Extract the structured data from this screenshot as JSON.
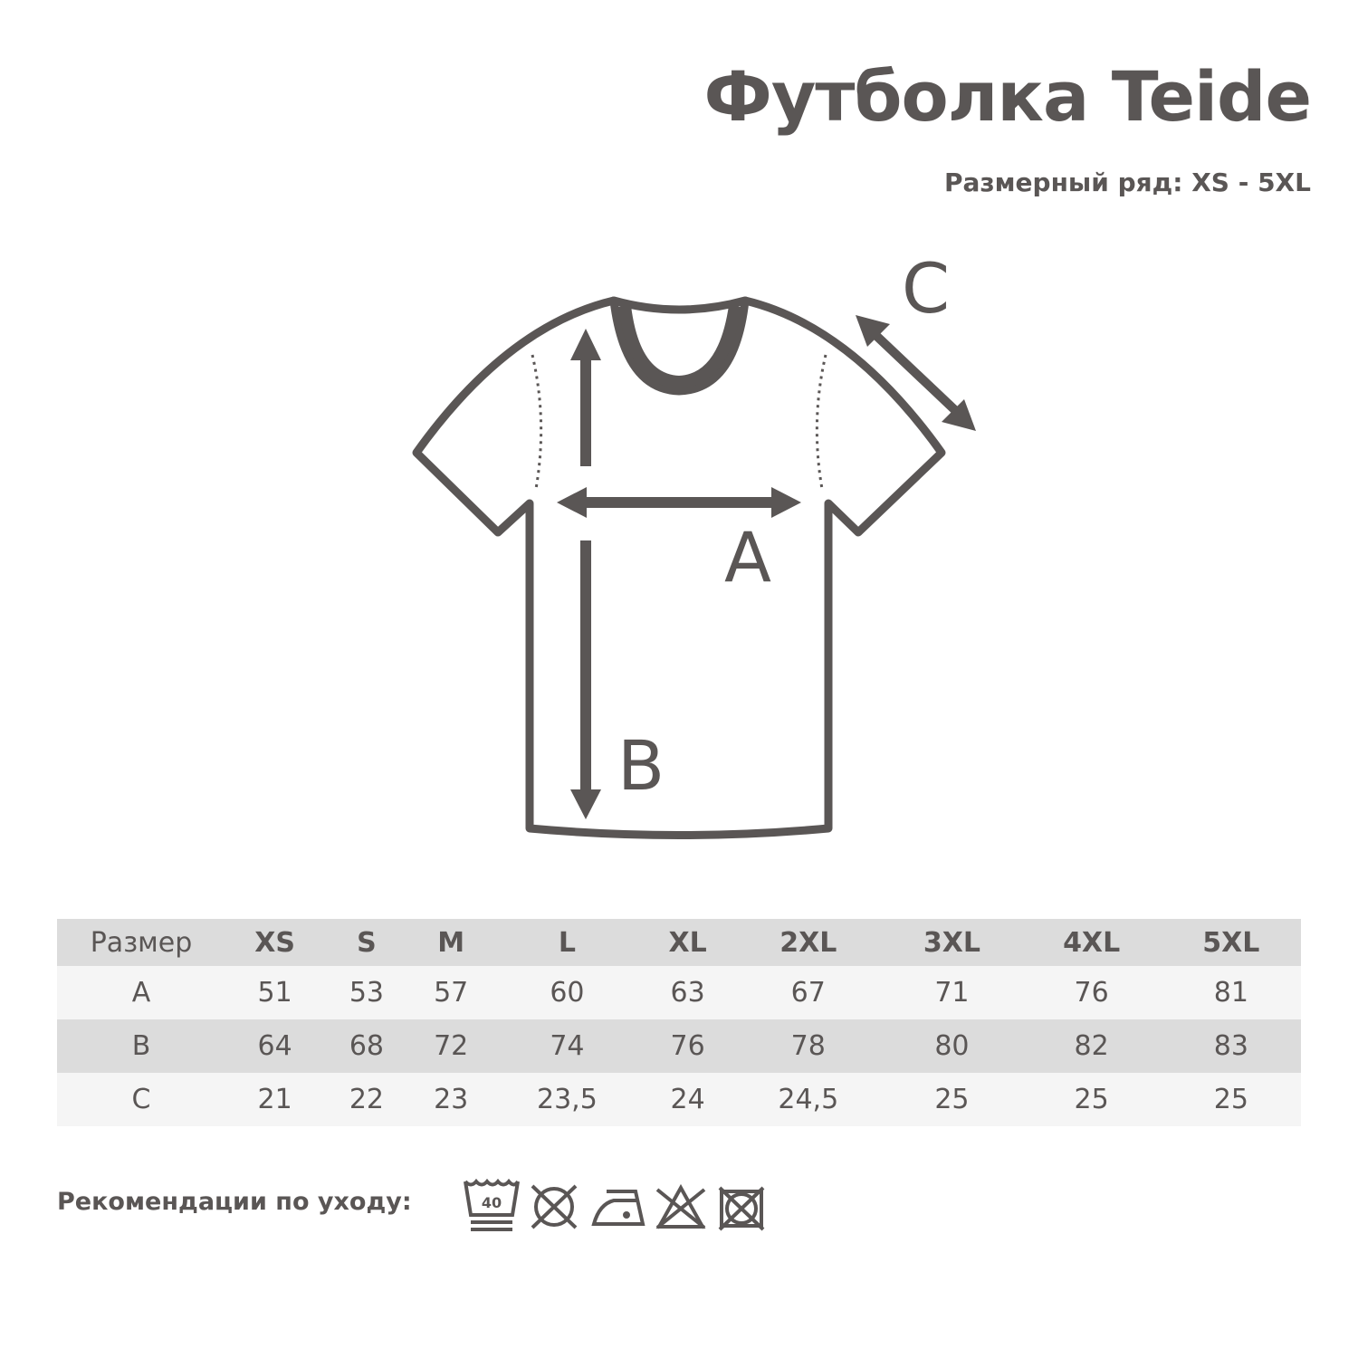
{
  "title": "Футболка Teide",
  "subtitle": "Размерный ряд: XS - 5XL",
  "diagram": {
    "labels": {
      "a": "A",
      "b": "B",
      "c": "C"
    }
  },
  "table": {
    "header": [
      "Размер",
      "XS",
      "S",
      "M",
      "L",
      "XL",
      "2XL",
      "3XL",
      "4XL",
      "5XL"
    ],
    "rows": [
      [
        "A",
        "51",
        "53",
        "57",
        "60",
        "63",
        "67",
        "71",
        "76",
        "81"
      ],
      [
        "B",
        "64",
        "68",
        "72",
        "74",
        "76",
        "78",
        "80",
        "82",
        "83"
      ],
      [
        "C",
        "21",
        "22",
        "23",
        "23,5",
        "24",
        "24,5",
        "25",
        "25",
        "25"
      ]
    ]
  },
  "care": {
    "label": "Рекомендации по уходу:",
    "wash_temp": "40",
    "icons": [
      "wash-40-gentle-icon",
      "do-not-tumble-dry-icon",
      "iron-low-icon",
      "do-not-bleach-icon",
      "do-not-dry-icon"
    ]
  },
  "colors": {
    "text": "#5a5655",
    "header_bg": "#dcdcdc",
    "row_light": "#f5f5f5"
  }
}
